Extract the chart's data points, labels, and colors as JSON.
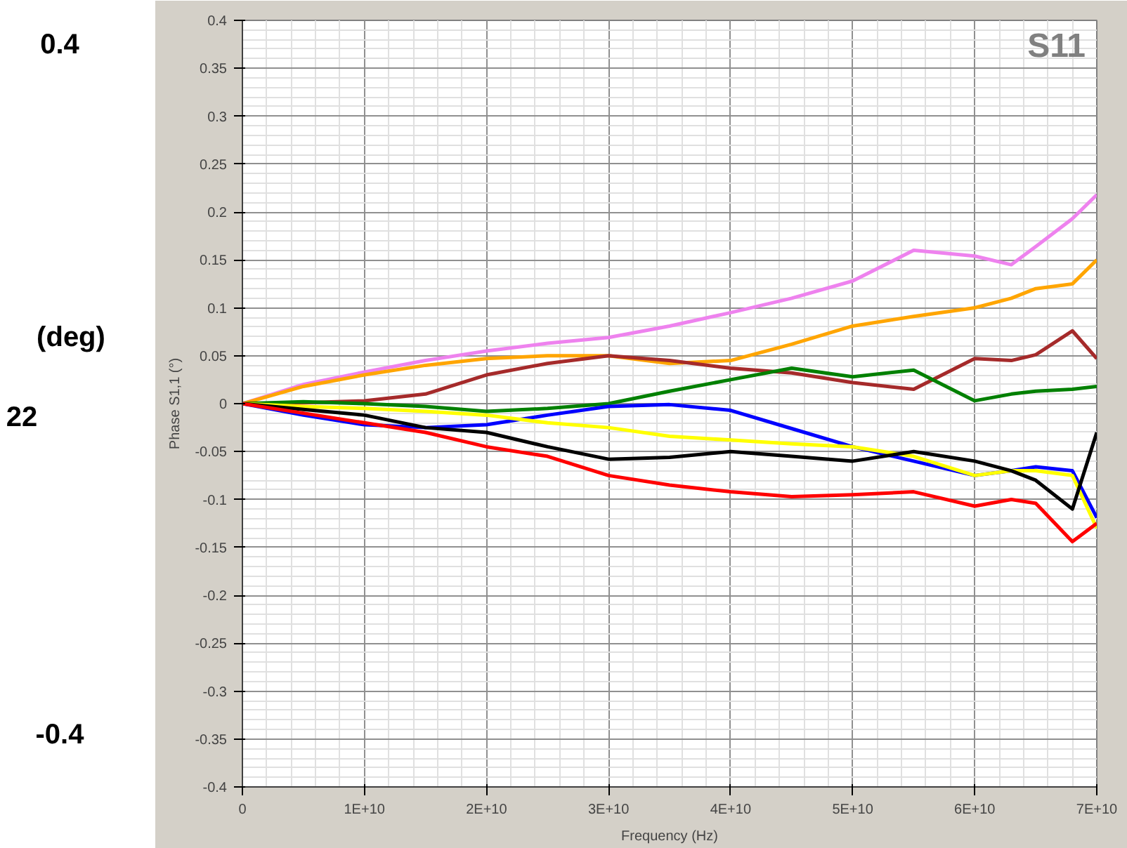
{
  "chart_data": {
    "type": "line",
    "xlabel": "Frequency (Hz)",
    "ylabel": "Phase S1,1 (°)",
    "annotations": [
      "S11",
      "0.4",
      "(deg)",
      "22",
      "-0.4"
    ],
    "xlim": [
      0,
      70000000000
    ],
    "ylim": [
      -0.4,
      0.4
    ],
    "xticks": [
      0,
      {
        "value": 10000000000,
        "label": "1E+10"
      },
      {
        "value": 20000000000,
        "label": "2E+10"
      },
      {
        "value": 30000000000,
        "label": "3E+10"
      },
      {
        "value": 40000000000,
        "label": "4E+10"
      },
      {
        "value": 50000000000,
        "label": "5E+10"
      },
      {
        "value": 60000000000,
        "label": "6E+10"
      },
      {
        "value": 70000000000,
        "label": "7E+10"
      }
    ],
    "yticks": [
      -0.4,
      -0.35,
      -0.3,
      -0.25,
      -0.2,
      -0.15,
      -0.1,
      -0.05,
      0,
      0.05,
      0.1,
      0.15,
      0.2,
      0.25,
      0.3,
      0.35,
      0.4
    ],
    "grid": true,
    "marker": "none",
    "line_style": "solid",
    "x": [
      0,
      5000000000,
      10000000000,
      15000000000,
      20000000000,
      25000000000,
      30000000000,
      35000000000,
      40000000000,
      45000000000,
      50000000000,
      55000000000,
      60000000000,
      63000000000,
      65000000000,
      68000000000,
      70000000000
    ],
    "series": [
      {
        "color": "#ee82ee",
        "values": [
          0,
          0.02,
          0.033,
          0.045,
          0.055,
          0.063,
          0.069,
          0.081,
          0.095,
          0.11,
          0.128,
          0.16,
          0.154,
          0.145,
          0.164,
          0.193,
          0.218
        ]
      },
      {
        "color": "#ffa500",
        "values": [
          0,
          0.018,
          0.03,
          0.04,
          0.047,
          0.05,
          0.05,
          0.042,
          0.045,
          0.062,
          0.081,
          0.091,
          0.1,
          0.11,
          0.12,
          0.125,
          0.15
        ]
      },
      {
        "color": "#a52a2a",
        "values": [
          0,
          0.001,
          0.003,
          0.01,
          0.03,
          0.042,
          0.05,
          0.045,
          0.037,
          0.032,
          0.022,
          0.015,
          0.047,
          0.045,
          0.051,
          0.076,
          0.047
        ]
      },
      {
        "color": "#008000",
        "values": [
          0,
          0.002,
          0.0,
          -0.003,
          -0.008,
          -0.005,
          0.0,
          0.013,
          0.025,
          0.037,
          0.028,
          0.035,
          0.003,
          0.01,
          0.013,
          0.015,
          0.018
        ]
      },
      {
        "color": "#0000ff",
        "values": [
          0,
          -0.012,
          -0.022,
          -0.025,
          -0.022,
          -0.012,
          -0.003,
          -0.001,
          -0.007,
          -0.026,
          -0.045,
          -0.06,
          -0.075,
          -0.07,
          -0.066,
          -0.07,
          -0.119
        ]
      },
      {
        "color": "#ffff00",
        "values": [
          0,
          -0.003,
          -0.005,
          -0.008,
          -0.012,
          -0.02,
          -0.025,
          -0.034,
          -0.038,
          -0.042,
          -0.045,
          -0.055,
          -0.075,
          -0.07,
          -0.07,
          -0.075,
          -0.13
        ]
      },
      {
        "color": "#000000",
        "values": [
          0,
          -0.006,
          -0.012,
          -0.025,
          -0.03,
          -0.045,
          -0.058,
          -0.056,
          -0.05,
          -0.055,
          -0.06,
          -0.05,
          -0.06,
          -0.07,
          -0.08,
          -0.11,
          -0.03
        ]
      },
      {
        "color": "#ff0000",
        "values": [
          0,
          -0.01,
          -0.02,
          -0.03,
          -0.045,
          -0.055,
          -0.075,
          -0.085,
          -0.092,
          -0.097,
          -0.095,
          -0.092,
          -0.107,
          -0.1,
          -0.104,
          -0.144,
          -0.125
        ]
      }
    ]
  }
}
